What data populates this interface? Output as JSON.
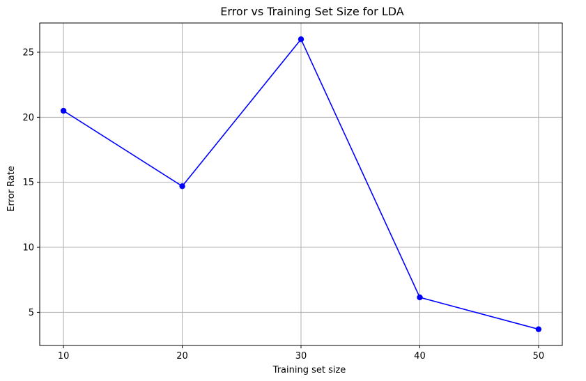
{
  "chart_data": {
    "type": "line",
    "title": "Error vs Training Set Size for LDA",
    "xlabel": "Training set size",
    "ylabel": "Error Rate",
    "x": [
      10,
      20,
      30,
      40,
      50
    ],
    "series": [
      {
        "values": [
          20.5,
          14.7,
          26.0,
          6.15,
          3.7
        ],
        "color": "#0000ff",
        "marker": "circle"
      }
    ],
    "xlim": [
      8,
      52
    ],
    "ylim": [
      2.45,
      27.25
    ],
    "xticks": [
      10,
      20,
      30,
      40,
      50
    ],
    "yticks": [
      5,
      10,
      15,
      20,
      25
    ],
    "grid": true
  }
}
